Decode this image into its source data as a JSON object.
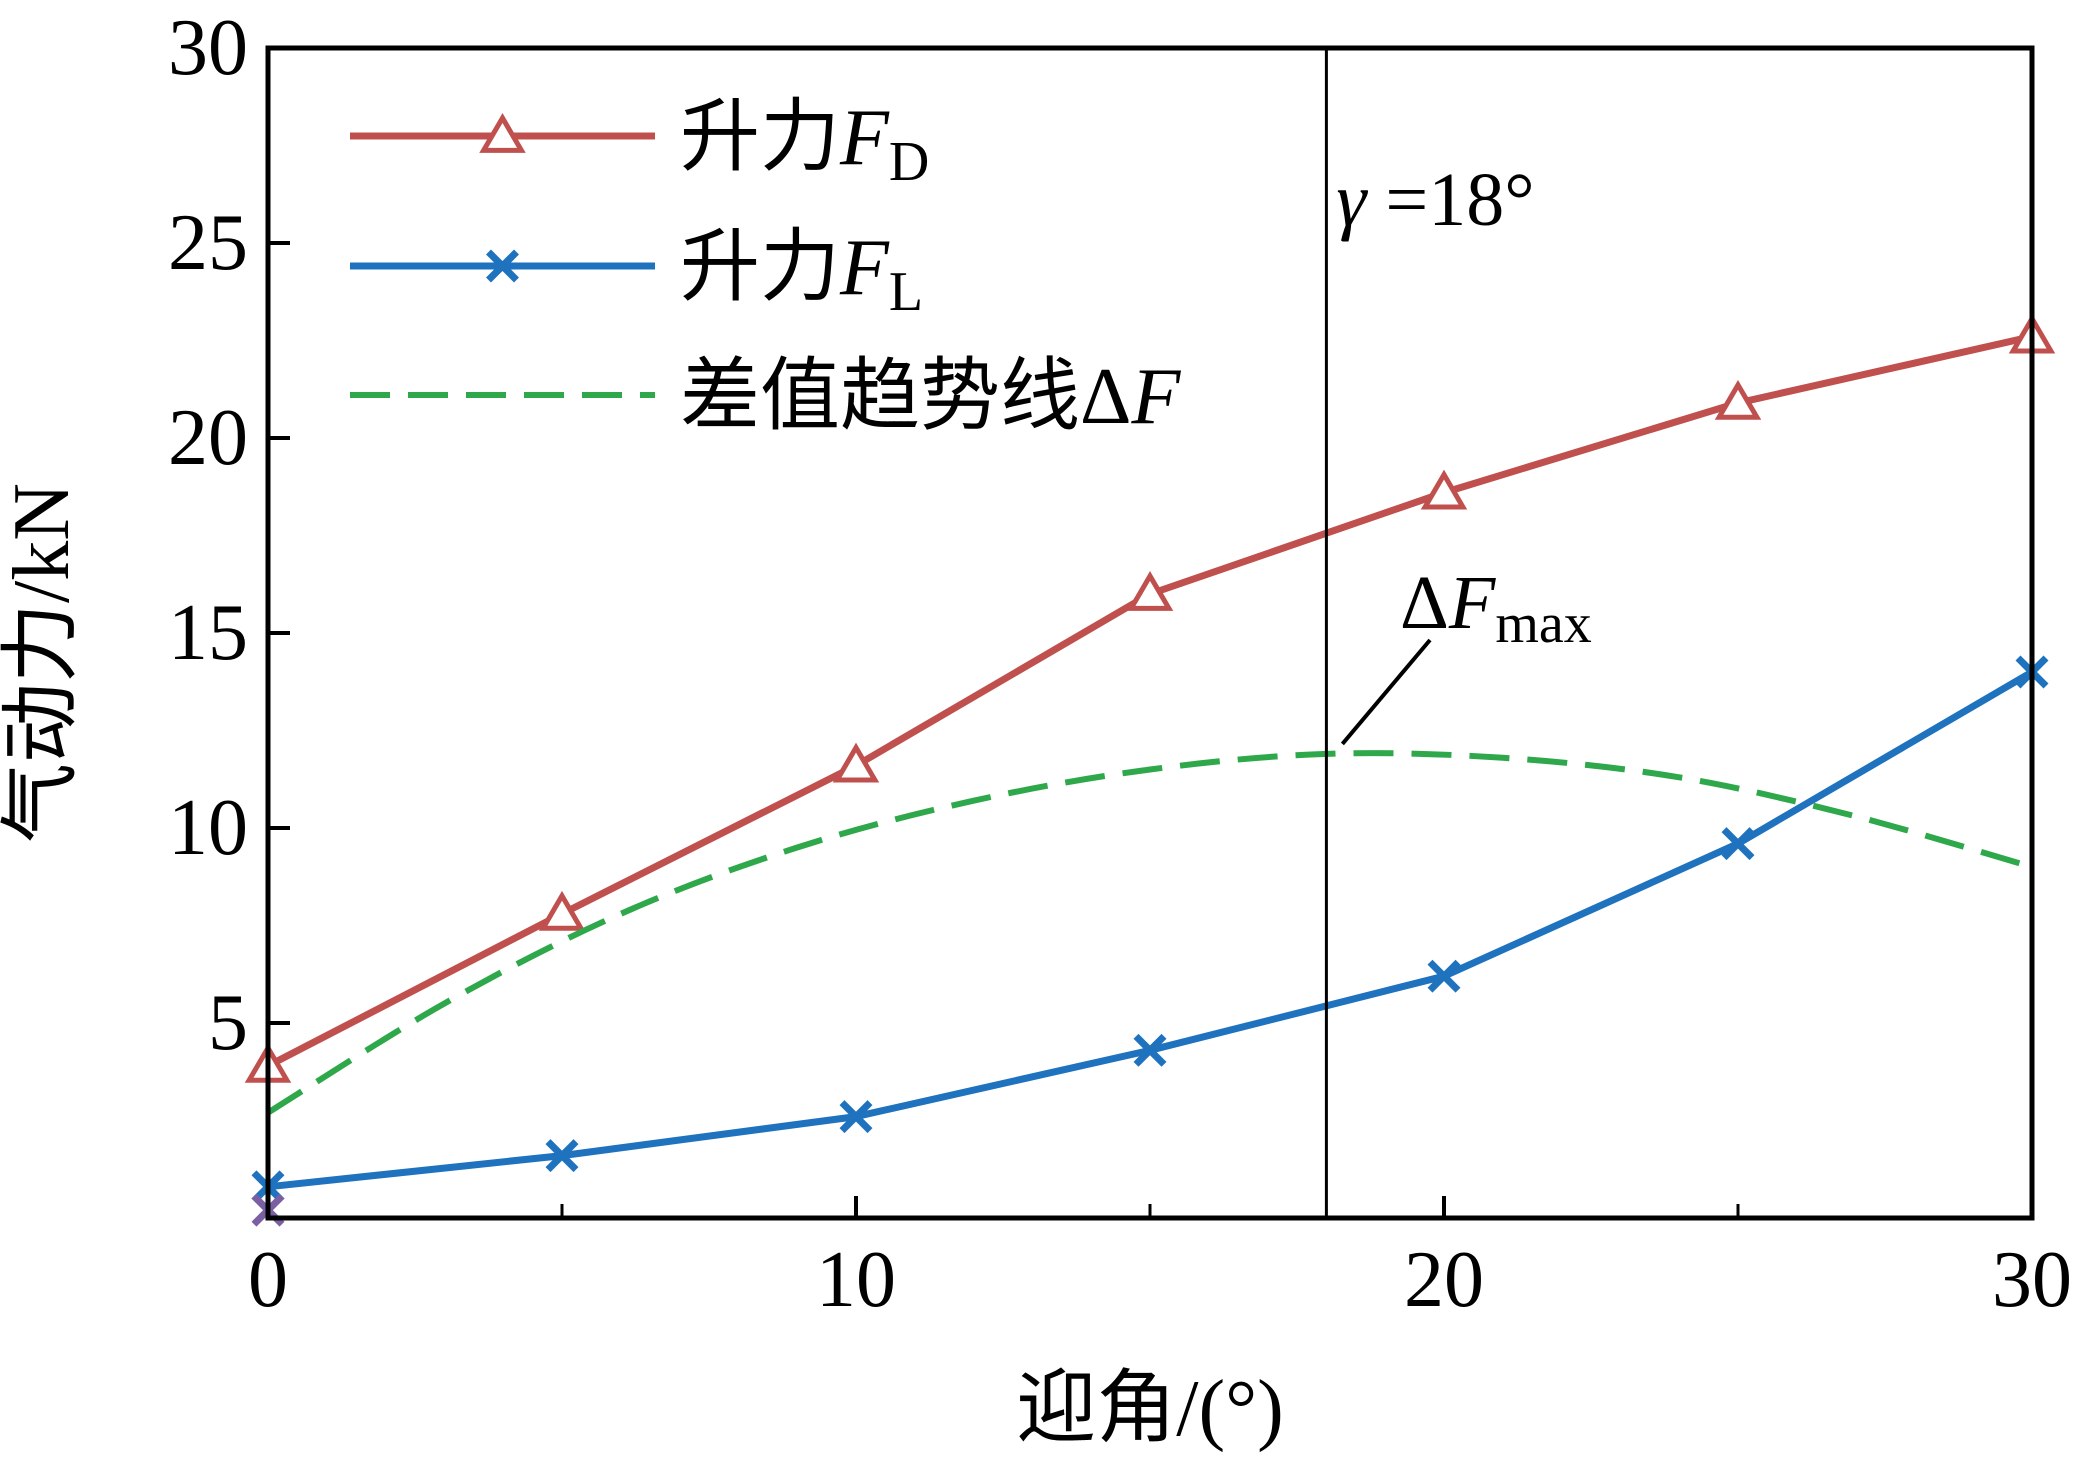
{
  "chart_data": {
    "type": "line",
    "xlabel": "迎角/(°)",
    "ylabel": "气动力/kN",
    "xlim": [
      0,
      30
    ],
    "ylim": [
      0,
      30
    ],
    "x_ticks": [
      "0",
      "10",
      "20",
      "30"
    ],
    "y_ticks": [
      "30",
      "25",
      "20",
      "15",
      "10",
      "5"
    ],
    "x_minor_tick_values": [
      5,
      15,
      25
    ],
    "grid": false,
    "legend_position": "top-left",
    "series": [
      {
        "name": "升力F_D",
        "label_main": "升力",
        "label_italic": "F",
        "label_sub": "D",
        "marker": "triangle",
        "line": "solid",
        "color": "#c0504d",
        "x": [
          0,
          5,
          10,
          15,
          20,
          25,
          30
        ],
        "values": [
          3.9,
          7.8,
          11.6,
          16.0,
          18.6,
          20.9,
          22.6
        ]
      },
      {
        "name": "升力F_L",
        "label_main": "升力",
        "label_italic": "F",
        "label_sub": "L",
        "marker": "x",
        "line": "solid",
        "color": "#1f72be",
        "x": [
          0,
          5,
          10,
          15,
          20,
          25,
          30
        ],
        "values": [
          0.8,
          1.6,
          2.6,
          4.3,
          6.2,
          9.6,
          14.0
        ]
      },
      {
        "name": "差值趋势线ΔF",
        "label_main": "差值趋势线Δ",
        "label_italic": "F",
        "label_sub": "",
        "marker": "none",
        "line": "dashed",
        "color": "#2ea84a",
        "x": [
          0,
          3,
          6,
          9,
          12,
          15,
          18,
          21,
          24,
          27,
          30
        ],
        "values": [
          2.7,
          5.5,
          7.8,
          9.5,
          10.7,
          11.5,
          11.9,
          11.8,
          11.3,
          10.3,
          9.0
        ]
      }
    ],
    "annotations": {
      "vline_x": 18,
      "gamma": {
        "symbol": "γ",
        "text": " =18°"
      },
      "delta_f_max": {
        "prefix": "Δ",
        "italic": "F",
        "sub": "max",
        "point_x": 18,
        "point_y": 11.9
      }
    },
    "stray_marker": {
      "x": 0,
      "y": 0.2,
      "color": "#7b5fa3"
    }
  }
}
